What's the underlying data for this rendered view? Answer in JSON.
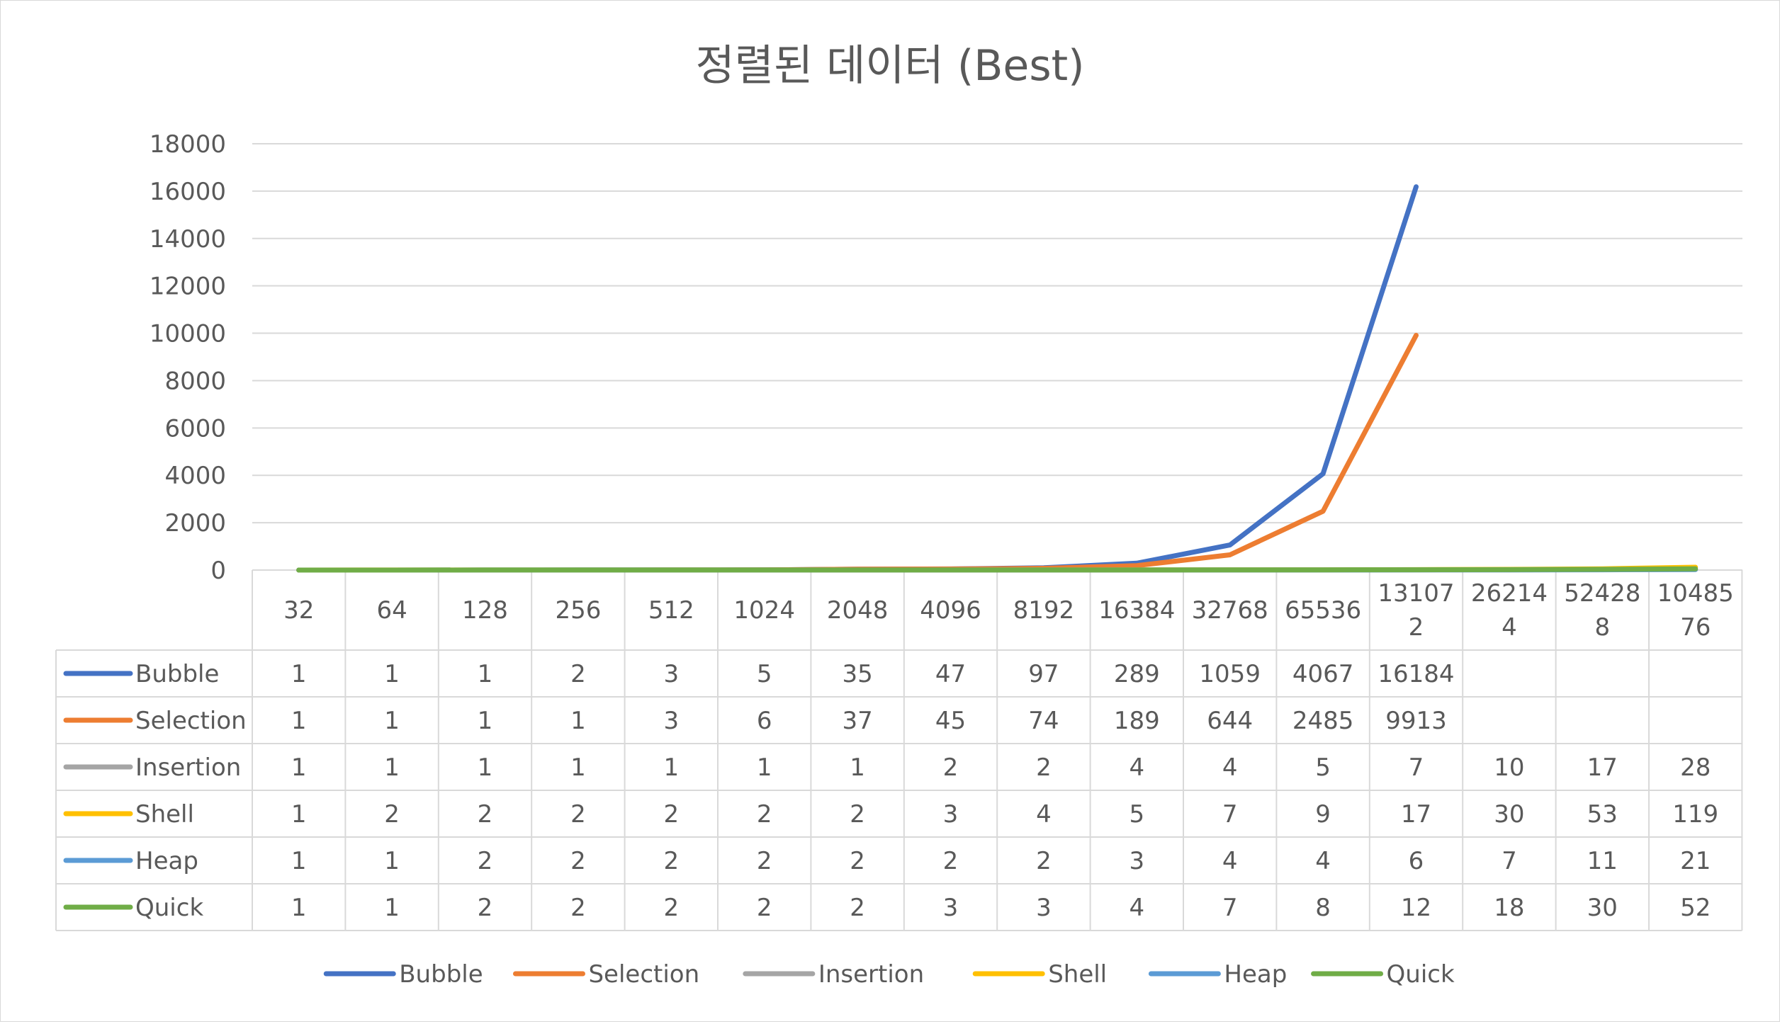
{
  "chart_data": {
    "type": "line",
    "title": "정렬된 데이터 (Best)",
    "xlabel": "",
    "ylabel": "",
    "ylim": [
      0,
      18000
    ],
    "yticks": [
      "0",
      "2000",
      "4000",
      "6000",
      "8000",
      "10000",
      "12000",
      "14000",
      "16000",
      "18000"
    ],
    "grid": true,
    "legend": "bottom",
    "data_table": true,
    "categories": [
      "32",
      "64",
      "128",
      "256",
      "512",
      "1024",
      "2048",
      "4096",
      "8192",
      "16384",
      "32768",
      "65536",
      "131072",
      "262144",
      "524288",
      "1048576"
    ],
    "category_labels": [
      [
        "32"
      ],
      [
        "64"
      ],
      [
        "128"
      ],
      [
        "256"
      ],
      [
        "512"
      ],
      [
        "1024"
      ],
      [
        "2048"
      ],
      [
        "4096"
      ],
      [
        "8192"
      ],
      [
        "16384"
      ],
      [
        "32768"
      ],
      [
        "65536"
      ],
      [
        "13107",
        "2"
      ],
      [
        "26214",
        "4"
      ],
      [
        "52428",
        "8"
      ],
      [
        "10485",
        "76"
      ]
    ],
    "series": [
      {
        "name": "Bubble",
        "color": "#4472C4",
        "values": [
          1,
          1,
          1,
          2,
          3,
          5,
          35,
          47,
          97,
          289,
          1059,
          4067,
          16184,
          null,
          null,
          null
        ]
      },
      {
        "name": "Selection",
        "color": "#ED7D31",
        "values": [
          1,
          1,
          1,
          1,
          3,
          6,
          37,
          45,
          74,
          189,
          644,
          2485,
          9913,
          null,
          null,
          null
        ]
      },
      {
        "name": "Insertion",
        "color": "#A5A5A5",
        "values": [
          1,
          1,
          1,
          1,
          1,
          1,
          1,
          2,
          2,
          4,
          4,
          5,
          7,
          10,
          17,
          28
        ]
      },
      {
        "name": "Shell",
        "color": "#FFC000",
        "values": [
          1,
          2,
          2,
          2,
          2,
          2,
          2,
          3,
          4,
          5,
          7,
          9,
          17,
          30,
          53,
          119
        ]
      },
      {
        "name": "Heap",
        "color": "#5B9BD5",
        "values": [
          1,
          1,
          2,
          2,
          2,
          2,
          2,
          2,
          2,
          3,
          4,
          4,
          6,
          7,
          11,
          21
        ]
      },
      {
        "name": "Quick",
        "color": "#70AD47",
        "values": [
          1,
          1,
          2,
          2,
          2,
          2,
          2,
          3,
          3,
          4,
          7,
          8,
          12,
          18,
          30,
          52
        ]
      }
    ]
  }
}
